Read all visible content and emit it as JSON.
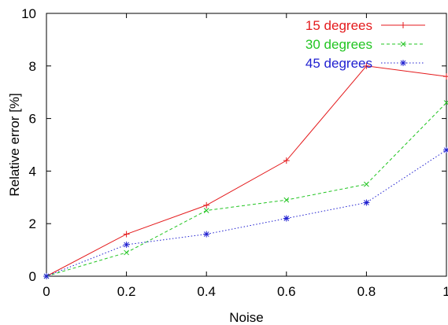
{
  "chart_data": {
    "type": "line",
    "title": "",
    "xlabel": "Noise",
    "ylabel": "Relative error [%]",
    "xlim": [
      0,
      1
    ],
    "ylim": [
      0,
      10
    ],
    "x_ticks": [
      "0",
      "0.2",
      "0.4",
      "0.6",
      "0.8",
      "1"
    ],
    "y_ticks": [
      "0",
      "2",
      "4",
      "6",
      "8",
      "10"
    ],
    "grid": false,
    "legend_position": "top-right",
    "x": [
      0,
      0.2,
      0.4,
      0.6,
      0.8,
      1.0
    ],
    "series": [
      {
        "name": "15 degrees",
        "color": "#e41a1c",
        "dash": "solid",
        "marker": "plus",
        "values": [
          0,
          1.6,
          2.7,
          4.4,
          8.0,
          7.6
        ]
      },
      {
        "name": "30 degrees",
        "color": "#22c522",
        "dash": "dashed",
        "marker": "cross",
        "values": [
          0,
          0.9,
          2.5,
          2.9,
          3.5,
          6.6
        ]
      },
      {
        "name": "45 degrees",
        "color": "#1f1fd0",
        "dash": "dotted",
        "marker": "star",
        "values": [
          0,
          1.2,
          1.6,
          2.2,
          2.8,
          4.8
        ]
      }
    ]
  }
}
